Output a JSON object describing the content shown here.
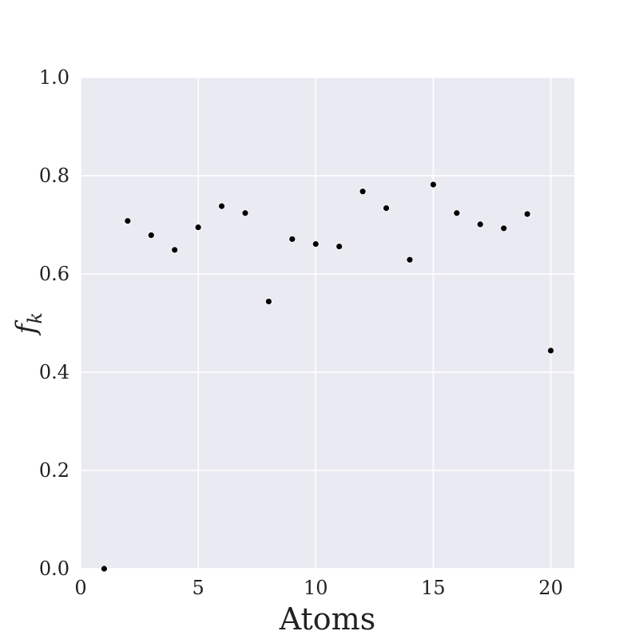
{
  "chart_data": {
    "type": "scatter",
    "title": "",
    "xlabel": "Atoms",
    "ylabel": "f",
    "ylabel_subscript": "k",
    "xlim": [
      0,
      21
    ],
    "ylim": [
      0.0,
      1.0
    ],
    "x_ticks": [
      0,
      5,
      10,
      15,
      20
    ],
    "x_tick_labels": [
      "0",
      "5",
      "10",
      "15",
      "20"
    ],
    "y_ticks": [
      0.0,
      0.2,
      0.4,
      0.6,
      0.8,
      1.0
    ],
    "y_tick_labels": [
      "0.0",
      "0.2",
      "0.4",
      "0.6",
      "0.8",
      "1.0"
    ],
    "grid": true,
    "background_color": "#eaeaf2",
    "grid_color": "#ffffff",
    "marker_color": "#000000",
    "series": [
      {
        "x": [
          1,
          2,
          3,
          4,
          5,
          6,
          7,
          8,
          9,
          10,
          11,
          12,
          13,
          14,
          15,
          16,
          17,
          18,
          19,
          20
        ],
        "y": [
          0.0,
          0.708,
          0.679,
          0.649,
          0.695,
          0.738,
          0.724,
          0.544,
          0.671,
          0.661,
          0.656,
          0.768,
          0.734,
          0.629,
          0.782,
          0.724,
          0.701,
          0.693,
          0.722,
          0.444
        ]
      }
    ]
  }
}
